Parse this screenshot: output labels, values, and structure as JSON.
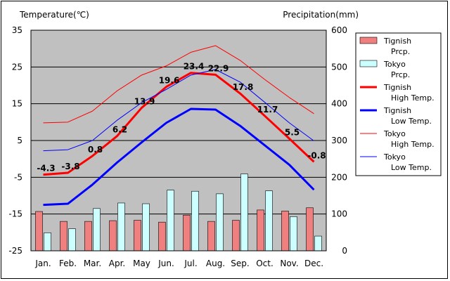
{
  "chart_data": {
    "type": "bar",
    "categories": [
      "Jan.",
      "Feb.",
      "Mar.",
      "Apr.",
      "May",
      "Jun.",
      "Jul.",
      "Aug.",
      "Sep.",
      "Oct.",
      "Nov.",
      "Dec."
    ],
    "left_axis": {
      "label": "Temperature(℃)",
      "min": -25,
      "max": 35,
      "ticks": [
        35,
        25,
        15,
        5,
        -5,
        -15,
        -25
      ]
    },
    "right_axis": {
      "label": "Precipitation(mm)",
      "min": 0,
      "max": 600,
      "ticks": [
        600,
        500,
        400,
        300,
        200,
        100,
        0
      ]
    },
    "grid": true,
    "legend_position": "right",
    "series": [
      {
        "name": "Tignish Prcp.",
        "type": "bar",
        "axis": "right",
        "color": "#f08080",
        "values": [
          107,
          80,
          80,
          82,
          83,
          78,
          97,
          80,
          83,
          111,
          108,
          117
        ]
      },
      {
        "name": "Tokyo Prcp.",
        "type": "bar",
        "axis": "right",
        "color": "#ccffff",
        "values": [
          49,
          60,
          115,
          130,
          128,
          165,
          162,
          155,
          209,
          163,
          93,
          40
        ]
      },
      {
        "name": "Tignish High Temp.",
        "type": "line",
        "axis": "left",
        "color": "#ff0000",
        "width": 3,
        "values": [
          -4.3,
          -3.8,
          0.8,
          6.2,
          13.9,
          19.6,
          23.4,
          22.9,
          17.8,
          11.7,
          5.5,
          -0.8
        ],
        "labels": [
          "-4.3",
          "-3.8",
          "0.8",
          "6.2",
          "13.9",
          "19.6",
          "23.4",
          "22.9",
          "17.8",
          "11.7",
          "5.5",
          "-0.8"
        ]
      },
      {
        "name": "Tignish Low Temp.",
        "type": "line",
        "axis": "left",
        "color": "#0000ff",
        "width": 3,
        "values": [
          -12.5,
          -12.2,
          -7.0,
          -1.0,
          4.5,
          9.8,
          13.6,
          13.4,
          9.0,
          3.7,
          -1.6,
          -8.4
        ]
      },
      {
        "name": "Tokyo High Temp.",
        "type": "line",
        "axis": "left",
        "color": "#ff0000",
        "width": 1,
        "values": [
          9.8,
          10.0,
          13.0,
          18.5,
          22.8,
          25.3,
          29.0,
          30.8,
          26.8,
          21.6,
          16.7,
          12.3
        ]
      },
      {
        "name": "Tokyo Low Temp.",
        "type": "line",
        "axis": "left",
        "color": "#0000ff",
        "width": 1,
        "values": [
          2.2,
          2.5,
          5.0,
          10.5,
          15.3,
          18.9,
          22.8,
          24.3,
          20.9,
          15.4,
          9.8,
          4.9
        ]
      }
    ],
    "legend": [
      {
        "text": [
          "Tignish",
          "Prcp."
        ],
        "swatch": "bar",
        "color": "#f08080"
      },
      {
        "text": [
          "Tokyo",
          "Prcp."
        ],
        "swatch": "bar",
        "color": "#ccffff"
      },
      {
        "text": [
          "Tignish",
          "High Temp."
        ],
        "swatch": "line",
        "color": "#ff0000",
        "width": 3
      },
      {
        "text": [
          "Tignish",
          "Low Temp."
        ],
        "swatch": "line",
        "color": "#0000ff",
        "width": 3
      },
      {
        "text": [
          "Tokyo",
          "High Temp."
        ],
        "swatch": "line",
        "color": "#ff0000",
        "width": 1
      },
      {
        "text": [
          "Tokyo",
          "Low Temp."
        ],
        "swatch": "line",
        "color": "#0000ff",
        "width": 1
      }
    ],
    "colors": {
      "plot_background": "#c0c0c0",
      "grid": "#000000"
    }
  }
}
